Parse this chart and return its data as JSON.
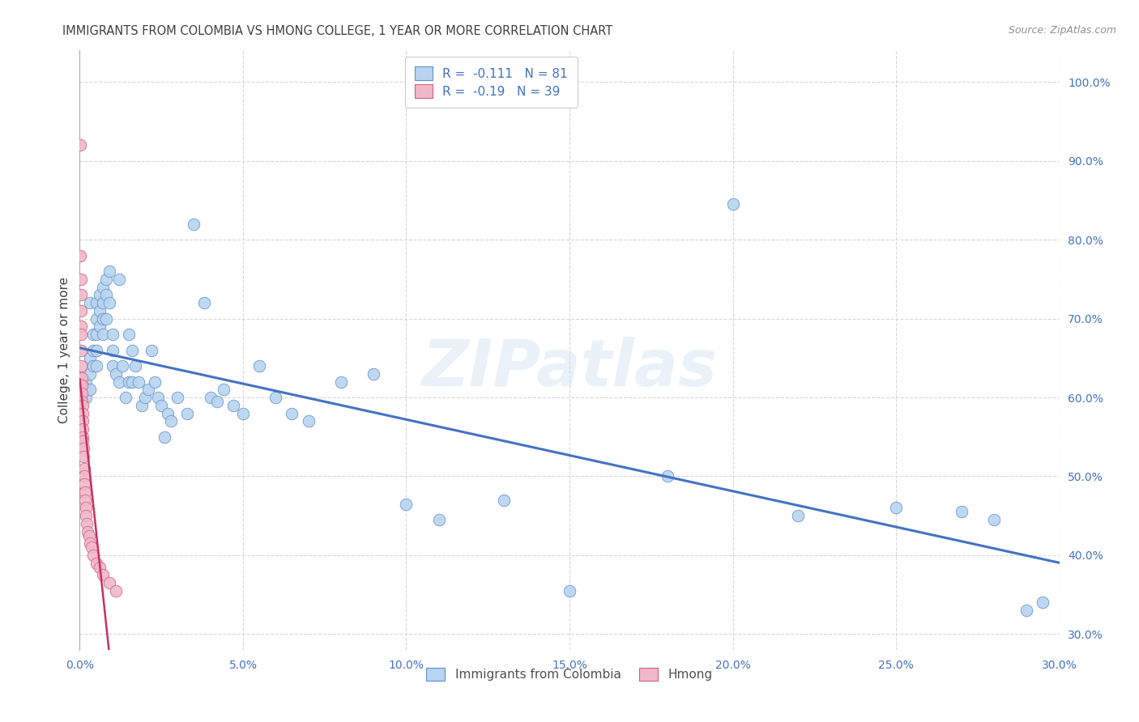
{
  "title": "IMMIGRANTS FROM COLOMBIA VS HMONG COLLEGE, 1 YEAR OR MORE CORRELATION CHART",
  "source": "Source: ZipAtlas.com",
  "ylabel": "College, 1 year or more",
  "watermark": "ZIPatlas",
  "colombia_x": [
    0.001,
    0.001,
    0.001,
    0.002,
    0.002,
    0.002,
    0.003,
    0.003,
    0.003,
    0.003,
    0.004,
    0.004,
    0.004,
    0.005,
    0.005,
    0.005,
    0.005,
    0.005,
    0.006,
    0.006,
    0.006,
    0.007,
    0.007,
    0.007,
    0.007,
    0.008,
    0.008,
    0.008,
    0.009,
    0.009,
    0.01,
    0.01,
    0.01,
    0.011,
    0.012,
    0.012,
    0.013,
    0.014,
    0.015,
    0.015,
    0.016,
    0.016,
    0.017,
    0.018,
    0.019,
    0.02,
    0.021,
    0.022,
    0.023,
    0.024,
    0.025,
    0.026,
    0.027,
    0.028,
    0.03,
    0.033,
    0.035,
    0.038,
    0.04,
    0.042,
    0.044,
    0.047,
    0.05,
    0.055,
    0.06,
    0.065,
    0.07,
    0.08,
    0.09,
    0.1,
    0.11,
    0.13,
    0.15,
    0.18,
    0.2,
    0.22,
    0.25,
    0.27,
    0.28,
    0.29,
    0.295
  ],
  "colombia_y": [
    0.625,
    0.615,
    0.605,
    0.62,
    0.61,
    0.6,
    0.72,
    0.65,
    0.63,
    0.61,
    0.68,
    0.66,
    0.64,
    0.72,
    0.7,
    0.68,
    0.66,
    0.64,
    0.73,
    0.71,
    0.69,
    0.74,
    0.72,
    0.7,
    0.68,
    0.75,
    0.73,
    0.7,
    0.76,
    0.72,
    0.68,
    0.66,
    0.64,
    0.63,
    0.75,
    0.62,
    0.64,
    0.6,
    0.68,
    0.62,
    0.66,
    0.62,
    0.64,
    0.62,
    0.59,
    0.6,
    0.61,
    0.66,
    0.62,
    0.6,
    0.59,
    0.55,
    0.58,
    0.57,
    0.6,
    0.58,
    0.82,
    0.72,
    0.6,
    0.595,
    0.61,
    0.59,
    0.58,
    0.64,
    0.6,
    0.58,
    0.57,
    0.62,
    0.63,
    0.465,
    0.445,
    0.47,
    0.355,
    0.5,
    0.845,
    0.45,
    0.46,
    0.455,
    0.445,
    0.33,
    0.34
  ],
  "hmong_x": [
    0.0002,
    0.0002,
    0.0003,
    0.0003,
    0.0004,
    0.0004,
    0.0004,
    0.0005,
    0.0005,
    0.0006,
    0.0006,
    0.0007,
    0.0007,
    0.0008,
    0.0008,
    0.0009,
    0.0009,
    0.001,
    0.001,
    0.0011,
    0.0012,
    0.0013,
    0.0014,
    0.0015,
    0.0016,
    0.0017,
    0.0018,
    0.002,
    0.0022,
    0.0025,
    0.0028,
    0.0032,
    0.0035,
    0.004,
    0.005,
    0.006,
    0.007,
    0.009,
    0.011
  ],
  "hmong_y": [
    0.92,
    0.78,
    0.75,
    0.73,
    0.71,
    0.69,
    0.68,
    0.66,
    0.64,
    0.625,
    0.615,
    0.605,
    0.595,
    0.59,
    0.58,
    0.57,
    0.56,
    0.55,
    0.545,
    0.535,
    0.525,
    0.51,
    0.5,
    0.49,
    0.48,
    0.47,
    0.46,
    0.45,
    0.44,
    0.43,
    0.425,
    0.415,
    0.41,
    0.4,
    0.39,
    0.385,
    0.375,
    0.365,
    0.355
  ],
  "colombia_color": "#b8d4f0",
  "hmong_color": "#f0b8c8",
  "colombia_edge": "#6090c8",
  "hmong_edge": "#d06080",
  "line_colombia_color": "#4472c4",
  "line_hmong_color": "#c83060",
  "line_hmong_ext_color": "#e8a0b0",
  "R_colombia": -0.111,
  "N_colombia": 81,
  "R_hmong": -0.19,
  "N_hmong": 39,
  "xmin": 0.0,
  "xmax": 0.3,
  "ymin": 0.28,
  "ymax": 1.04,
  "xticks": [
    0.0,
    0.05,
    0.1,
    0.15,
    0.2,
    0.25,
    0.3
  ],
  "xtick_labels": [
    "0.0%",
    "5.0%",
    "10.0%",
    "15.0%",
    "20.0%",
    "25.0%",
    "30.0%"
  ],
  "ytick_right": [
    0.3,
    0.4,
    0.5,
    0.6,
    0.7,
    0.8,
    0.9,
    1.0
  ],
  "ytick_right_labels": [
    "30.0%",
    "40.0%",
    "50.0%",
    "60.0%",
    "70.0%",
    "80.0%",
    "90.0%",
    "100.0%"
  ],
  "grid_color": "#d8d8d8",
  "background_color": "#ffffff",
  "title_color": "#404040",
  "tick_color": "#4472c4"
}
